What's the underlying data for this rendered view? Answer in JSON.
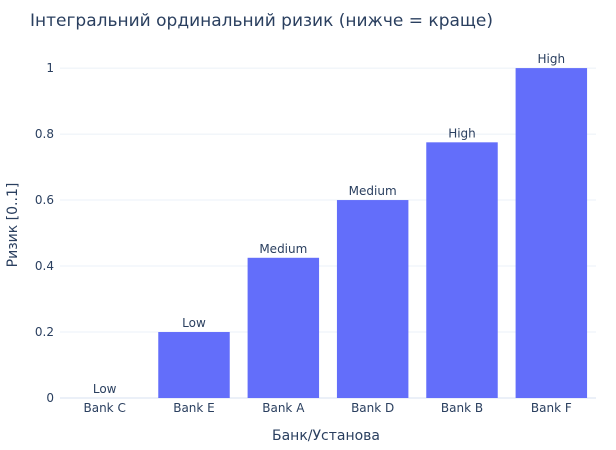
{
  "chart_data": {
    "type": "bar",
    "title": "Інтегральний ординальний ризик (нижче = краще)",
    "xlabel": "Банк/Установа",
    "ylabel": "Ризик [0..1]",
    "categories": [
      "Bank C",
      "Bank E",
      "Bank A",
      "Bank D",
      "Bank B",
      "Bank F"
    ],
    "values": [
      0,
      0.2,
      0.425,
      0.6,
      0.775,
      1
    ],
    "data_labels": [
      "Low",
      "Low",
      "Medium",
      "Medium",
      "High",
      "High"
    ],
    "ylim": [
      0,
      1.07
    ],
    "y_ticks": [
      0,
      0.2,
      0.4,
      0.6,
      0.8,
      1
    ],
    "y_tick_labels": [
      "0",
      "0.2",
      "0.4",
      "0.6",
      "0.8",
      "1"
    ],
    "grid": true,
    "legend": "none",
    "bar_color": "#636efa"
  }
}
